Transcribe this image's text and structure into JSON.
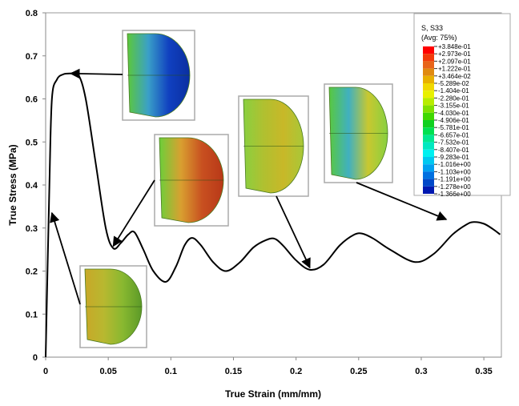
{
  "chart_data": {
    "type": "line",
    "title": "",
    "xlabel": "True Strain (mm/mm)",
    "ylabel": "True Stress (MPa)",
    "xlim": [
      0,
      0.364
    ],
    "ylim": [
      0,
      0.8
    ],
    "xticks": [
      "0",
      "0.05",
      "0.1",
      "0.15",
      "0.2",
      "0.25",
      "0.3",
      "0.35"
    ],
    "xtick_values": [
      0,
      0.05,
      0.1,
      0.15,
      0.2,
      0.25,
      0.3,
      0.35
    ],
    "yticks": [
      "0",
      "0.1",
      "0.2",
      "0.3",
      "0.4",
      "0.5",
      "0.6",
      "0.7",
      "0.8"
    ],
    "ytick_values": [
      0,
      0.1,
      0.2,
      0.3,
      0.4,
      0.5,
      0.6,
      0.7,
      0.8
    ],
    "grid": false,
    "series": [
      {
        "name": "True stress-strain",
        "x": [
          0,
          0.003,
          0.005,
          0.009,
          0.014,
          0.02,
          0.026,
          0.032,
          0.04,
          0.048,
          0.054,
          0.06,
          0.066,
          0.071,
          0.078,
          0.086,
          0.096,
          0.104,
          0.111,
          0.117,
          0.124,
          0.134,
          0.144,
          0.155,
          0.166,
          0.176,
          0.183,
          0.19,
          0.2,
          0.211,
          0.222,
          0.235,
          0.246,
          0.253,
          0.262,
          0.275,
          0.295,
          0.31,
          0.325,
          0.336,
          0.342,
          0.35,
          0.357,
          0.363
        ],
        "y": [
          0,
          0.4,
          0.6,
          0.645,
          0.657,
          0.659,
          0.657,
          0.6,
          0.45,
          0.3,
          0.253,
          0.265,
          0.285,
          0.29,
          0.25,
          0.2,
          0.175,
          0.21,
          0.26,
          0.277,
          0.26,
          0.22,
          0.2,
          0.22,
          0.255,
          0.272,
          0.275,
          0.258,
          0.225,
          0.203,
          0.215,
          0.26,
          0.284,
          0.287,
          0.275,
          0.25,
          0.221,
          0.24,
          0.285,
          0.308,
          0.314,
          0.31,
          0.298,
          0.285
        ]
      }
    ],
    "annotations": [
      {
        "name": "inset-peak",
        "target": [
          0.02,
          0.659
        ],
        "palette": "blue"
      },
      {
        "name": "inset-first-drop",
        "target": [
          0.054,
          0.258
        ],
        "palette": "red"
      },
      {
        "name": "inset-second-valley",
        "target": [
          0.211,
          0.208
        ],
        "palette": "greenyellow"
      },
      {
        "name": "inset-late",
        "target": [
          0.32,
          0.32
        ],
        "palette": "green"
      },
      {
        "name": "inset-elastic",
        "target": [
          0.005,
          0.335
        ],
        "palette": "yellow"
      }
    ],
    "legend": {
      "title": "S, S33",
      "subtitle": "(Avg: 75%)",
      "placement": "top-right",
      "labels": [
        "+3.848e-01",
        "+2.973e-01",
        "+2.097e-01",
        "+1.222e-01",
        "+3.464e-02",
        "-5.289e-02",
        "-1.404e-01",
        "-2.280e-01",
        "-3.155e-01",
        "-4.030e-01",
        "-4.906e-01",
        "-5.781e-01",
        "-6.657e-01",
        "-7.532e-01",
        "-8.407e-01",
        "-9.283e-01",
        "-1.016e+00",
        "-1.103e+00",
        "-1.191e+00",
        "-1.278e+00",
        "-1.366e+00"
      ],
      "colors": [
        "#ff0000",
        "#f23a0a",
        "#e8641a",
        "#e08a10",
        "#e8b000",
        "#f0d800",
        "#e8f000",
        "#b8ec00",
        "#80e000",
        "#40d800",
        "#10d020",
        "#00e050",
        "#00e890",
        "#00e8c0",
        "#00f0f0",
        "#00c8f0",
        "#00a0f0",
        "#0070e0",
        "#0048c8",
        "#0018b0"
      ]
    }
  }
}
